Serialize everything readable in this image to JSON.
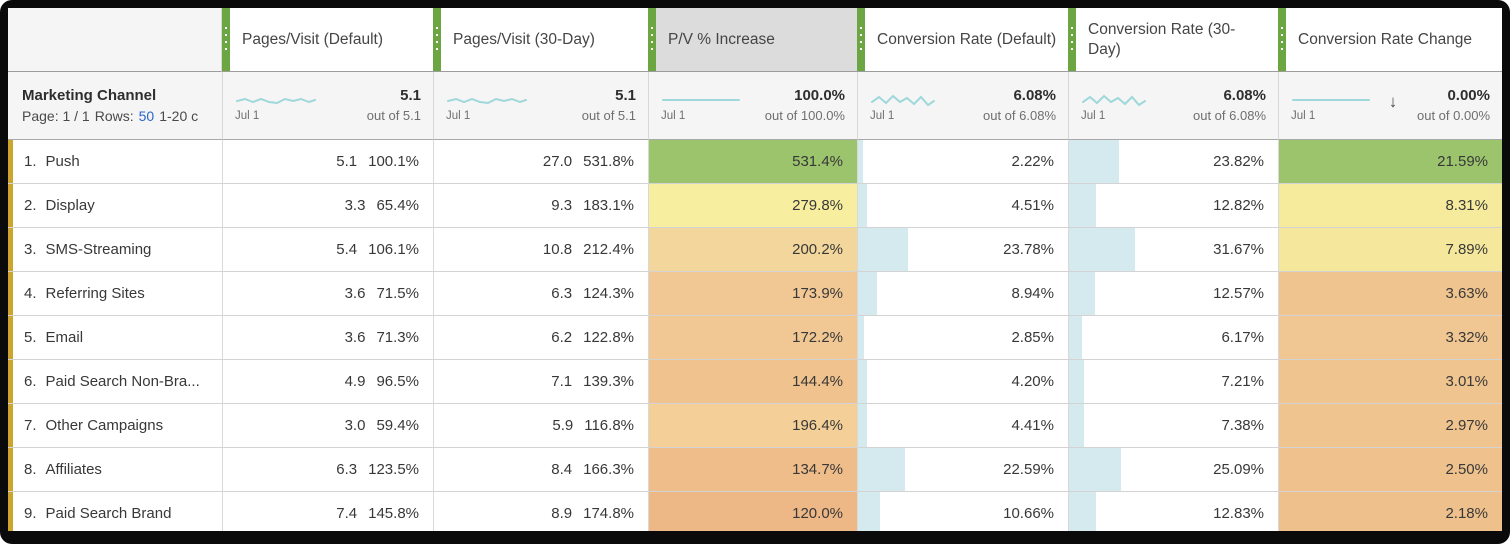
{
  "colors": {
    "accent_green": "#6CA643",
    "row_marker_gold": "#CEA42F",
    "spark_teal": "#9FD8DA",
    "link_blue": "#2E66C8",
    "bar_blue": "#D5EAEE",
    "selected_header_bg": "#DCDCDC"
  },
  "corner": {
    "title": "Marketing Channel",
    "page_label": "Page: 1 / 1",
    "rows_label": "Rows:",
    "rows_value": "50",
    "range": "1-20 c"
  },
  "columns": [
    {
      "id": "pv-default",
      "label": "Pages/Visit (Default)",
      "selected": false,
      "spark": "wavy",
      "summary": {
        "value": "5.1",
        "out_of": "out of 5.1",
        "date": "Jul 1"
      }
    },
    {
      "id": "pv-30day",
      "label": "Pages/Visit (30-Day)",
      "selected": false,
      "spark": "wavy",
      "summary": {
        "value": "5.1",
        "out_of": "out of 5.1",
        "date": "Jul 1"
      }
    },
    {
      "id": "pv-increase",
      "label": "P/V % Increase",
      "selected": true,
      "spark": "flat",
      "summary": {
        "value": "100.0%",
        "out_of": "out of 100.0%",
        "date": "Jul 1"
      }
    },
    {
      "id": "cr-default",
      "label": "Conversion Rate (Default)",
      "selected": false,
      "spark": "zigzag",
      "summary": {
        "value": "6.08%",
        "out_of": "out of 6.08%",
        "date": "Jul 1"
      }
    },
    {
      "id": "cr-30day",
      "label": "Conversion Rate (30-Day)",
      "selected": false,
      "spark": "zigzag",
      "summary": {
        "value": "6.08%",
        "out_of": "out of 6.08%",
        "date": "Jul 1"
      }
    },
    {
      "id": "cr-change",
      "label": "Conversion Rate Change",
      "selected": false,
      "spark": "flat",
      "sort": "descending",
      "summary": {
        "value": "0.00%",
        "out_of": "out of 0.00%",
        "date": "Jul 1"
      }
    }
  ],
  "rows": [
    {
      "rank": "1.",
      "name": "Push",
      "pv_default": {
        "value": "5.1",
        "pct": "100.1%"
      },
      "pv_30day": {
        "value": "27.0",
        "pct": "531.8%"
      },
      "pv_increase": {
        "text": "531.4%",
        "bg": "#9CC46D"
      },
      "cr_default": {
        "text": "2.22%",
        "bar": 2.22
      },
      "cr_30day": {
        "text": "23.82%",
        "bar": 23.82
      },
      "cr_change": {
        "text": "21.59%",
        "bg": "#9CC46D"
      }
    },
    {
      "rank": "2.",
      "name": "Display",
      "pv_default": {
        "value": "3.3",
        "pct": "65.4%"
      },
      "pv_30day": {
        "value": "9.3",
        "pct": "183.1%"
      },
      "pv_increase": {
        "text": "279.8%",
        "bg": "#F7EF9F"
      },
      "cr_default": {
        "text": "4.51%",
        "bar": 4.51
      },
      "cr_30day": {
        "text": "12.82%",
        "bar": 12.82
      },
      "cr_change": {
        "text": "8.31%",
        "bg": "#F6EB9D"
      }
    },
    {
      "rank": "3.",
      "name": "SMS-Streaming",
      "pv_default": {
        "value": "5.4",
        "pct": "106.1%"
      },
      "pv_30day": {
        "value": "10.8",
        "pct": "212.4%"
      },
      "pv_increase": {
        "text": "200.2%",
        "bg": "#F3D69B"
      },
      "cr_default": {
        "text": "23.78%",
        "bar": 23.78
      },
      "cr_30day": {
        "text": "31.67%",
        "bar": 31.67
      },
      "cr_change": {
        "text": "7.89%",
        "bg": "#F5E89C"
      }
    },
    {
      "rank": "4.",
      "name": "Referring Sites",
      "pv_default": {
        "value": "3.6",
        "pct": "71.5%"
      },
      "pv_30day": {
        "value": "6.3",
        "pct": "124.3%"
      },
      "pv_increase": {
        "text": "173.9%",
        "bg": "#F1C794"
      },
      "cr_default": {
        "text": "8.94%",
        "bar": 8.94
      },
      "cr_30day": {
        "text": "12.57%",
        "bar": 12.57
      },
      "cr_change": {
        "text": "3.63%",
        "bg": "#F0C48F"
      }
    },
    {
      "rank": "5.",
      "name": "Email",
      "pv_default": {
        "value": "3.6",
        "pct": "71.3%"
      },
      "pv_30day": {
        "value": "6.2",
        "pct": "122.8%"
      },
      "pv_increase": {
        "text": "172.2%",
        "bg": "#F1C794"
      },
      "cr_default": {
        "text": "2.85%",
        "bar": 2.85
      },
      "cr_30day": {
        "text": "6.17%",
        "bar": 6.17
      },
      "cr_change": {
        "text": "3.32%",
        "bg": "#F0C692"
      }
    },
    {
      "rank": "6.",
      "name": "Paid Search Non-Bra...",
      "pv_default": {
        "value": "4.9",
        "pct": "96.5%"
      },
      "pv_30day": {
        "value": "7.1",
        "pct": "139.3%"
      },
      "pv_increase": {
        "text": "144.4%",
        "bg": "#F0C28E"
      },
      "cr_default": {
        "text": "4.20%",
        "bar": 4.2
      },
      "cr_30day": {
        "text": "7.21%",
        "bar": 7.21
      },
      "cr_change": {
        "text": "3.01%",
        "bg": "#F0C48F"
      }
    },
    {
      "rank": "7.",
      "name": "Other Campaigns",
      "pv_default": {
        "value": "3.0",
        "pct": "59.4%"
      },
      "pv_30day": {
        "value": "5.9",
        "pct": "116.8%"
      },
      "pv_increase": {
        "text": "196.4%",
        "bg": "#F4D098"
      },
      "cr_default": {
        "text": "4.41%",
        "bar": 4.41
      },
      "cr_30day": {
        "text": "7.38%",
        "bar": 7.38
      },
      "cr_change": {
        "text": "2.97%",
        "bg": "#F0C48F"
      }
    },
    {
      "rank": "8.",
      "name": "Affiliates",
      "pv_default": {
        "value": "6.3",
        "pct": "123.5%"
      },
      "pv_30day": {
        "value": "8.4",
        "pct": "166.3%"
      },
      "pv_increase": {
        "text": "134.7%",
        "bg": "#EFBD89"
      },
      "cr_default": {
        "text": "22.59%",
        "bar": 22.59
      },
      "cr_30day": {
        "text": "25.09%",
        "bar": 25.09
      },
      "cr_change": {
        "text": "2.50%",
        "bg": "#EFC28D"
      }
    },
    {
      "rank": "9.",
      "name": "Paid Search Brand",
      "pv_default": {
        "value": "7.4",
        "pct": "145.8%"
      },
      "pv_30day": {
        "value": "8.9",
        "pct": "174.8%"
      },
      "pv_increase": {
        "text": "120.0%",
        "bg": "#EEB886"
      },
      "cr_default": {
        "text": "10.66%",
        "bar": 10.66
      },
      "cr_30day": {
        "text": "12.83%",
        "bar": 12.83
      },
      "cr_change": {
        "text": "2.18%",
        "bg": "#EEC08C"
      }
    }
  ]
}
